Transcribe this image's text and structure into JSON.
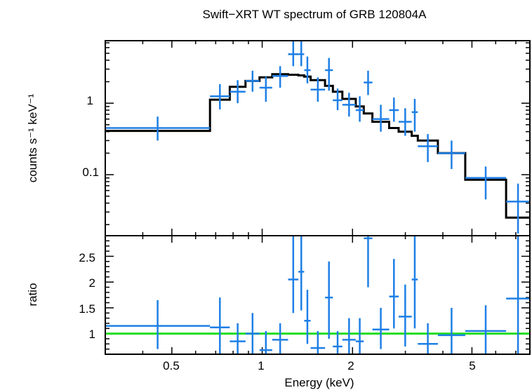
{
  "chart_data": [
    {
      "type": "scatter",
      "title": "Swift−XRT WT spectrum of GRB 120804A",
      "xlabel": "Energy (keV)",
      "ylabel": "counts s⁻¹ keV⁻¹",
      "xscale": "log",
      "yscale": "log",
      "xlim": [
        0.3,
        7.8
      ],
      "ylim": [
        0.014,
        7.5
      ],
      "y_tick_labels": [
        {
          "value": 0.1,
          "label": "0.1"
        },
        {
          "value": 1,
          "label": "1"
        }
      ],
      "colors": {
        "data": "#1e7fe6",
        "model": "#000000"
      },
      "series": [
        {
          "kind": "data",
          "points": [
            {
              "xlo": 0.3,
              "xhi": 0.67,
              "y": 0.45,
              "ylo": 0.3,
              "yhi": 0.65
            },
            {
              "xlo": 0.67,
              "xhi": 0.78,
              "y": 1.25,
              "ylo": 0.82,
              "yhi": 1.85
            },
            {
              "xlo": 0.78,
              "xhi": 0.88,
              "y": 1.45,
              "ylo": 1.0,
              "yhi": 2.1
            },
            {
              "xlo": 0.88,
              "xhi": 0.98,
              "y": 2.05,
              "ylo": 1.45,
              "yhi": 2.85
            },
            {
              "xlo": 0.98,
              "xhi": 1.08,
              "y": 1.65,
              "ylo": 1.05,
              "yhi": 2.35
            },
            {
              "xlo": 1.08,
              "xhi": 1.22,
              "y": 2.4,
              "ylo": 1.65,
              "yhi": 3.3
            },
            {
              "xlo": 1.22,
              "xhi": 1.32,
              "y": 4.85,
              "ylo": 3.3,
              "yhi": 7.5
            },
            {
              "xlo": 1.32,
              "xhi": 1.38,
              "y": 4.85,
              "ylo": 3.3,
              "yhi": 7.5
            },
            {
              "xlo": 1.38,
              "xhi": 1.45,
              "y": 2.9,
              "ylo": 1.9,
              "yhi": 4.5
            },
            {
              "xlo": 1.45,
              "xhi": 1.62,
              "y": 1.55,
              "ylo": 1.05,
              "yhi": 2.3
            },
            {
              "xlo": 1.62,
              "xhi": 1.72,
              "y": 2.9,
              "ylo": 1.5,
              "yhi": 4.3
            },
            {
              "xlo": 1.72,
              "xhi": 1.85,
              "y": 1.1,
              "ylo": 0.8,
              "yhi": 1.6
            },
            {
              "xlo": 1.85,
              "xhi": 2.05,
              "y": 0.95,
              "ylo": 0.65,
              "yhi": 1.4
            },
            {
              "xlo": 2.05,
              "xhi": 2.18,
              "y": 0.8,
              "ylo": 0.55,
              "yhi": 1.25
            },
            {
              "xlo": 2.18,
              "xhi": 2.33,
              "y": 1.95,
              "ylo": 1.3,
              "yhi": 2.85
            },
            {
              "xlo": 2.33,
              "xhi": 2.65,
              "y": 0.6,
              "ylo": 0.4,
              "yhi": 0.95
            },
            {
              "xlo": 2.65,
              "xhi": 2.85,
              "y": 0.8,
              "ylo": 0.55,
              "yhi": 1.2
            },
            {
              "xlo": 2.85,
              "xhi": 3.15,
              "y": 0.55,
              "ylo": 0.35,
              "yhi": 0.85
            },
            {
              "xlo": 3.15,
              "xhi": 3.3,
              "y": 0.75,
              "ylo": 0.4,
              "yhi": 1.15
            },
            {
              "xlo": 3.3,
              "xhi": 3.85,
              "y": 0.25,
              "ylo": 0.15,
              "yhi": 0.37
            },
            {
              "xlo": 3.85,
              "xhi": 4.75,
              "y": 0.2,
              "ylo": 0.12,
              "yhi": 0.3
            },
            {
              "xlo": 4.75,
              "xhi": 6.5,
              "y": 0.09,
              "ylo": 0.045,
              "yhi": 0.13
            },
            {
              "xlo": 6.5,
              "xhi": 7.8,
              "y": 0.042,
              "ylo": 0.015,
              "yhi": 0.075
            }
          ]
        },
        {
          "kind": "model",
          "steps": [
            {
              "xlo": 0.3,
              "xhi": 0.67,
              "y": 0.41
            },
            {
              "xlo": 0.67,
              "xhi": 0.78,
              "y": 1.12
            },
            {
              "xlo": 0.78,
              "xhi": 0.88,
              "y": 1.7
            },
            {
              "xlo": 0.88,
              "xhi": 0.98,
              "y": 2.05
            },
            {
              "xlo": 0.98,
              "xhi": 1.08,
              "y": 2.3
            },
            {
              "xlo": 1.08,
              "xhi": 1.22,
              "y": 2.55
            },
            {
              "xlo": 1.22,
              "xhi": 1.32,
              "y": 2.5
            },
            {
              "xlo": 1.32,
              "xhi": 1.38,
              "y": 2.45
            },
            {
              "xlo": 1.38,
              "xhi": 1.45,
              "y": 2.35
            },
            {
              "xlo": 1.45,
              "xhi": 1.62,
              "y": 2.1
            },
            {
              "xlo": 1.62,
              "xhi": 1.72,
              "y": 1.75
            },
            {
              "xlo": 1.72,
              "xhi": 1.85,
              "y": 1.45
            },
            {
              "xlo": 1.85,
              "xhi": 2.05,
              "y": 1.15
            },
            {
              "xlo": 2.05,
              "xhi": 2.18,
              "y": 0.9
            },
            {
              "xlo": 2.18,
              "xhi": 2.33,
              "y": 0.72
            },
            {
              "xlo": 2.33,
              "xhi": 2.65,
              "y": 0.55
            },
            {
              "xlo": 2.65,
              "xhi": 2.85,
              "y": 0.45
            },
            {
              "xlo": 2.85,
              "xhi": 3.15,
              "y": 0.4
            },
            {
              "xlo": 3.15,
              "xhi": 3.3,
              "y": 0.35
            },
            {
              "xlo": 3.3,
              "xhi": 3.85,
              "y": 0.3
            },
            {
              "xlo": 3.85,
              "xhi": 4.75,
              "y": 0.2
            },
            {
              "xlo": 4.75,
              "xhi": 6.5,
              "y": 0.085
            },
            {
              "xlo": 6.5,
              "xhi": 7.8,
              "y": 0.025
            }
          ]
        }
      ]
    },
    {
      "type": "scatter",
      "xlabel": "Energy (keV)",
      "ylabel": "ratio",
      "xscale": "log",
      "yscale": "linear",
      "xlim": [
        0.3,
        7.8
      ],
      "ylim": [
        0.6,
        2.9
      ],
      "x_tick_labels": [
        {
          "value": 0.5,
          "label": "0.5"
        },
        {
          "value": 1,
          "label": "1"
        },
        {
          "value": 2,
          "label": "2"
        },
        {
          "value": 5,
          "label": "5"
        }
      ],
      "y_tick_labels": [
        {
          "value": 1,
          "label": "1"
        },
        {
          "value": 1.5,
          "label": "1.5"
        },
        {
          "value": 2,
          "label": "2"
        },
        {
          "value": 2.5,
          "label": "2.5"
        }
      ],
      "colors": {
        "data": "#1e7fe6",
        "reference": "#22dd22"
      },
      "reference_line": 1,
      "series": [
        {
          "kind": "data",
          "points": [
            {
              "xlo": 0.3,
              "xhi": 0.67,
              "y": 1.15,
              "ylo": 0.7,
              "yhi": 1.65
            },
            {
              "xlo": 0.67,
              "xhi": 0.78,
              "y": 1.12,
              "ylo": 0.6,
              "yhi": 1.7
            },
            {
              "xlo": 0.78,
              "xhi": 0.88,
              "y": 0.85,
              "ylo": 0.6,
              "yhi": 1.2
            },
            {
              "xlo": 0.88,
              "xhi": 0.98,
              "y": 1.0,
              "ylo": 0.6,
              "yhi": 1.4
            },
            {
              "xlo": 0.98,
              "xhi": 1.08,
              "y": 0.68,
              "ylo": 0.6,
              "yhi": 1.05
            },
            {
              "xlo": 1.08,
              "xhi": 1.22,
              "y": 0.88,
              "ylo": 0.6,
              "yhi": 1.2
            },
            {
              "xlo": 1.22,
              "xhi": 1.32,
              "y": 2.05,
              "ylo": 1.4,
              "yhi": 2.9
            },
            {
              "xlo": 1.32,
              "xhi": 1.38,
              "y": 2.2,
              "ylo": 1.45,
              "yhi": 2.9
            },
            {
              "xlo": 1.38,
              "xhi": 1.45,
              "y": 1.25,
              "ylo": 0.8,
              "yhi": 1.85
            },
            {
              "xlo": 1.45,
              "xhi": 1.62,
              "y": 0.72,
              "ylo": 0.6,
              "yhi": 1.05
            },
            {
              "xlo": 1.62,
              "xhi": 1.72,
              "y": 1.7,
              "ylo": 0.9,
              "yhi": 2.4
            },
            {
              "xlo": 1.72,
              "xhi": 1.85,
              "y": 0.75,
              "ylo": 0.6,
              "yhi": 1.05
            },
            {
              "xlo": 1.85,
              "xhi": 2.05,
              "y": 0.88,
              "ylo": 0.6,
              "yhi": 1.3
            },
            {
              "xlo": 2.05,
              "xhi": 2.18,
              "y": 0.85,
              "ylo": 0.6,
              "yhi": 1.3
            },
            {
              "xlo": 2.18,
              "xhi": 2.33,
              "y": 2.85,
              "ylo": 1.9,
              "yhi": 2.9
            },
            {
              "xlo": 2.33,
              "xhi": 2.65,
              "y": 1.08,
              "ylo": 0.7,
              "yhi": 1.5
            },
            {
              "xlo": 2.65,
              "xhi": 2.85,
              "y": 1.72,
              "ylo": 1.1,
              "yhi": 2.45
            },
            {
              "xlo": 2.85,
              "xhi": 3.15,
              "y": 1.33,
              "ylo": 0.75,
              "yhi": 1.95
            },
            {
              "xlo": 3.15,
              "xhi": 3.3,
              "y": 2.05,
              "ylo": 1.1,
              "yhi": 2.9
            },
            {
              "xlo": 3.3,
              "xhi": 3.85,
              "y": 0.8,
              "ylo": 0.6,
              "yhi": 1.2
            },
            {
              "xlo": 3.85,
              "xhi": 4.75,
              "y": 0.97,
              "ylo": 0.6,
              "yhi": 1.5
            },
            {
              "xlo": 4.75,
              "xhi": 6.5,
              "y": 1.05,
              "ylo": 0.55,
              "yhi": 1.55
            },
            {
              "xlo": 6.5,
              "xhi": 7.8,
              "y": 1.68,
              "ylo": 0.6,
              "yhi": 2.9
            }
          ]
        }
      ]
    }
  ]
}
